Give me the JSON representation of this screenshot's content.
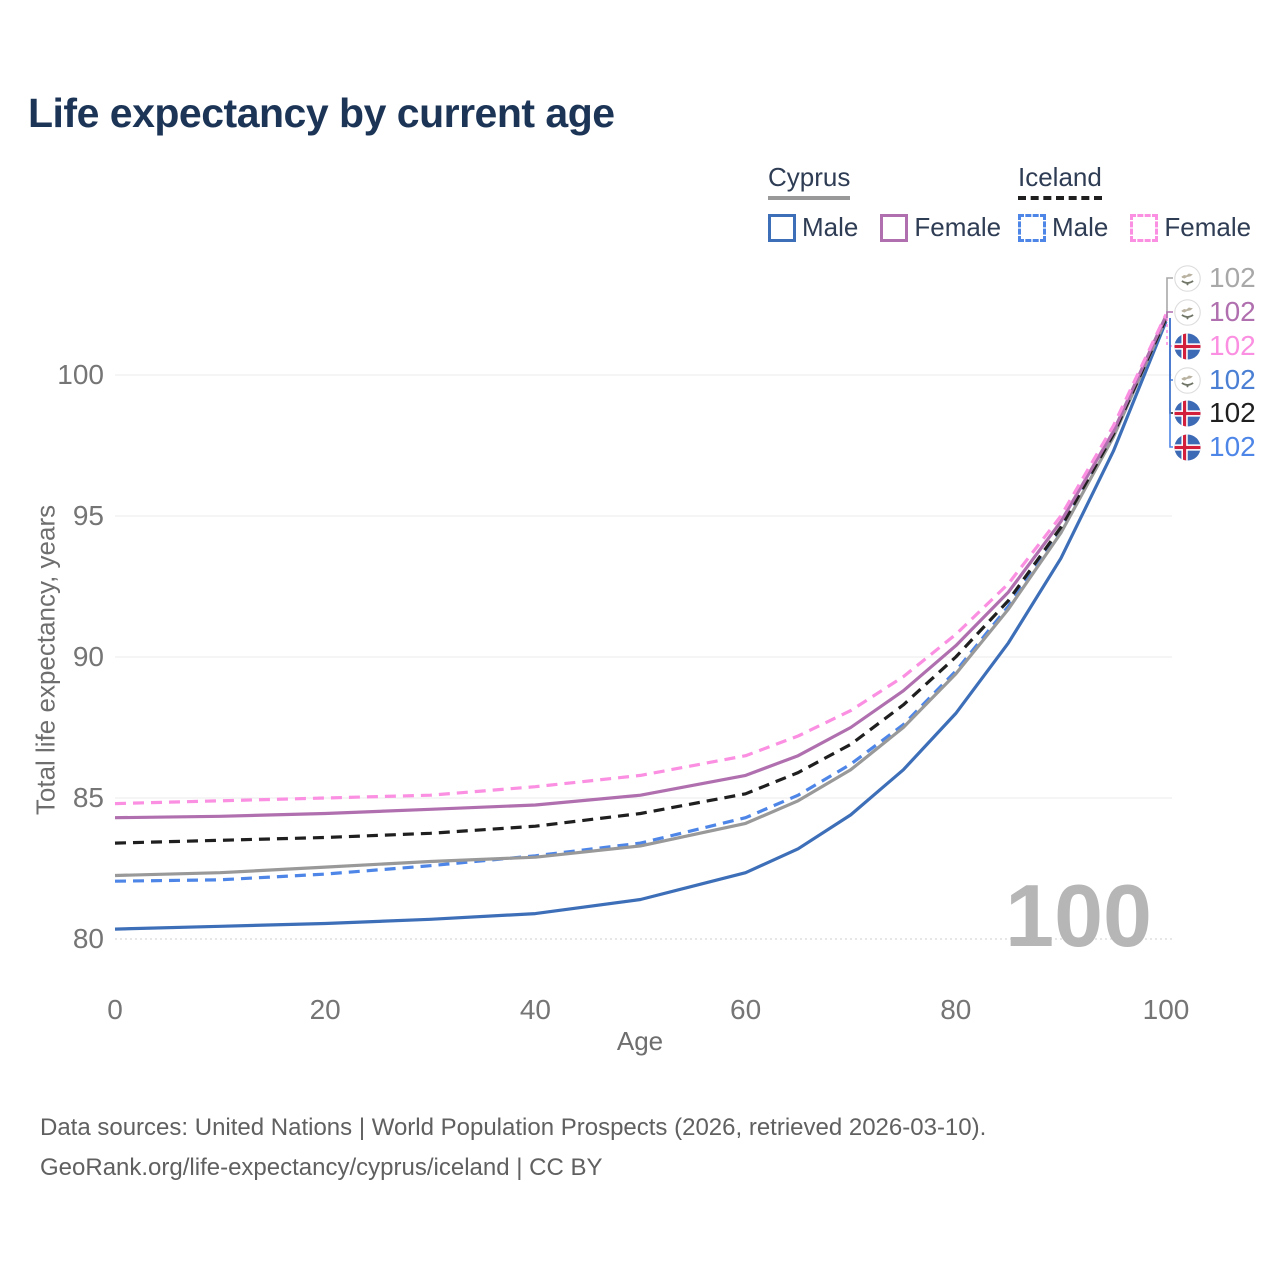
{
  "title": "Life expectancy by current age",
  "legend": {
    "groups": [
      {
        "country": "Cyprus",
        "style": "solid",
        "items": [
          {
            "label": "Male",
            "color": "#3d6eb8"
          },
          {
            "label": "Female",
            "color": "#b06fae"
          }
        ]
      },
      {
        "country": "Iceland",
        "style": "dashed",
        "items": [
          {
            "label": "Male",
            "color": "#4e86e8"
          },
          {
            "label": "Female",
            "color": "#fb8fe1"
          }
        ]
      }
    ]
  },
  "chart_data": {
    "type": "line",
    "title": "Life expectancy by current age",
    "xlabel": "Age",
    "ylabel": "Total life expectancy, years",
    "xlim": [
      0,
      100
    ],
    "ylim": [
      79.5,
      102.5
    ],
    "xticks": [
      0,
      20,
      40,
      60,
      80,
      100
    ],
    "yticks": [
      80,
      85,
      90,
      95,
      100
    ],
    "grid": "horizontal",
    "legend_position": "top-right",
    "x": [
      0,
      10,
      20,
      30,
      40,
      50,
      60,
      65,
      70,
      75,
      80,
      85,
      90,
      95,
      100
    ],
    "series": [
      {
        "id": "cyprus-male",
        "name": "Cyprus Male",
        "country": "Cyprus",
        "sex": "Male",
        "color": "#3d6eb8",
        "dash": false,
        "values": [
          80.35,
          80.45,
          80.55,
          80.7,
          80.9,
          81.4,
          82.35,
          83.2,
          84.4,
          86.0,
          88.0,
          90.5,
          93.5,
          97.3,
          101.9
        ]
      },
      {
        "id": "iceland-male",
        "name": "Iceland Male",
        "country": "Iceland",
        "sex": "Male",
        "color": "#4e86e8",
        "dash": true,
        "values": [
          82.05,
          82.1,
          82.3,
          82.6,
          82.95,
          83.4,
          84.3,
          85.1,
          86.2,
          87.6,
          89.5,
          91.8,
          94.5,
          97.9,
          102.0
        ]
      },
      {
        "id": "cyprus-both",
        "name": "Cyprus",
        "country": "Cyprus",
        "sex": "Both",
        "color": "#999999",
        "dash": false,
        "values": [
          82.25,
          82.35,
          82.55,
          82.75,
          82.9,
          83.3,
          84.1,
          84.9,
          86.0,
          87.5,
          89.4,
          91.7,
          94.4,
          97.8,
          102.0
        ]
      },
      {
        "id": "iceland-both",
        "name": "Iceland",
        "country": "Iceland",
        "sex": "Both",
        "color": "#1f1f1f",
        "dash": true,
        "values": [
          83.4,
          83.5,
          83.6,
          83.75,
          84.0,
          84.45,
          85.15,
          85.9,
          86.9,
          88.3,
          90.0,
          92.0,
          94.6,
          97.9,
          102.0
        ]
      },
      {
        "id": "cyprus-female",
        "name": "Cyprus Female",
        "country": "Cyprus",
        "sex": "Female",
        "color": "#b06fae",
        "dash": false,
        "values": [
          84.3,
          84.35,
          84.45,
          84.6,
          84.75,
          85.1,
          85.8,
          86.5,
          87.5,
          88.8,
          90.4,
          92.3,
          94.8,
          98.0,
          102.1
        ]
      },
      {
        "id": "iceland-female",
        "name": "Iceland Female",
        "country": "Iceland",
        "sex": "Female",
        "color": "#fb8fe1",
        "dash": true,
        "values": [
          84.8,
          84.9,
          85.0,
          85.1,
          85.4,
          85.8,
          86.5,
          87.2,
          88.1,
          89.3,
          90.8,
          92.6,
          95.0,
          98.2,
          102.15
        ]
      }
    ],
    "end_labels": [
      {
        "flag": "cyprus",
        "series": "Cyprus",
        "text": "102",
        "color": "#a8a8a8"
      },
      {
        "flag": "cyprus",
        "series": "Cyprus Female",
        "text": "102",
        "color": "#b06fae"
      },
      {
        "flag": "iceland",
        "series": "Iceland Female",
        "text": "102",
        "color": "#fb8fe1"
      },
      {
        "flag": "cyprus",
        "series": "Cyprus Male",
        "text": "102",
        "color": "#4a7fd4"
      },
      {
        "flag": "iceland",
        "series": "Iceland",
        "text": "102",
        "color": "#1f1f1f"
      },
      {
        "flag": "iceland",
        "series": "Iceland Male",
        "text": "102",
        "color": "#4e86e8"
      }
    ],
    "watermark": "100"
  },
  "footer": {
    "line1": "Data sources: United Nations | World Population Prospects (2026, retrieved 2026-03-10).",
    "line2": "GeoRank.org/life-expectancy/cyprus/iceland | CC BY"
  }
}
